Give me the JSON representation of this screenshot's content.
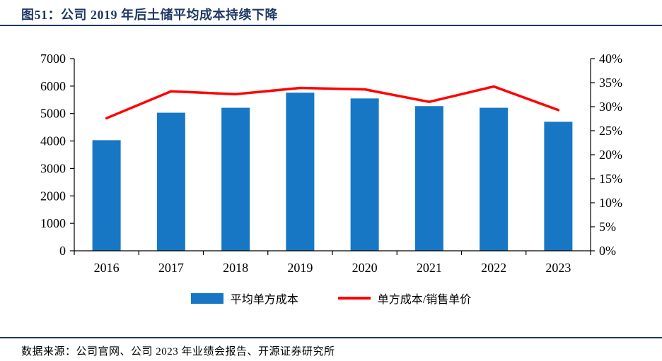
{
  "header": {
    "title": "图51：公司 2019 年后土储平均成本持续下降"
  },
  "footer": {
    "source": "数据来源：公司官网、公司 2023 年业绩会报告、开源证券研究所"
  },
  "colors": {
    "accent_navy": "#1F3864",
    "bar_blue": "#1777C4",
    "line_red": "#FF0000",
    "axis_black": "#000000"
  },
  "chart_data": {
    "type": "bar",
    "title": "公司 2019 年后土储平均成本持续下降",
    "categories": [
      "2016",
      "2017",
      "2018",
      "2019",
      "2020",
      "2021",
      "2022",
      "2023"
    ],
    "series": [
      {
        "name": "平均单方成本",
        "type": "bar",
        "axis": "left",
        "color": "#1777C4",
        "values": [
          4030,
          5030,
          5210,
          5760,
          5550,
          5270,
          5210,
          4700
        ]
      },
      {
        "name": "单方成本/销售单价",
        "type": "line",
        "axis": "right",
        "color": "#FF0000",
        "values": [
          27.6,
          33.2,
          32.6,
          33.9,
          33.6,
          31.0,
          34.2,
          29.3
        ]
      }
    ],
    "left_axis": {
      "min": 0,
      "max": 7000,
      "step": 1000,
      "ticks": [
        "0",
        "1000",
        "2000",
        "3000",
        "4000",
        "5000",
        "6000",
        "7000"
      ]
    },
    "right_axis": {
      "min": 0,
      "max": 40,
      "step": 5,
      "ticks": [
        "0%",
        "5%",
        "10%",
        "15%",
        "20%",
        "25%",
        "30%",
        "35%",
        "40%"
      ]
    },
    "grid": false,
    "legend_position": "bottom"
  }
}
